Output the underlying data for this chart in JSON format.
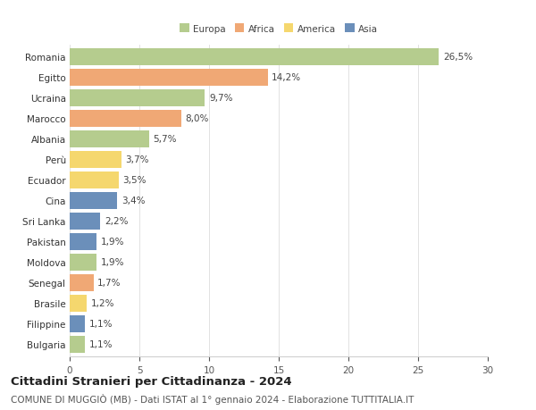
{
  "countries": [
    "Romania",
    "Egitto",
    "Ucraina",
    "Marocco",
    "Albania",
    "Perù",
    "Ecuador",
    "Cina",
    "Sri Lanka",
    "Pakistan",
    "Moldova",
    "Senegal",
    "Brasile",
    "Filippine",
    "Bulgaria"
  ],
  "values": [
    26.5,
    14.2,
    9.7,
    8.0,
    5.7,
    3.7,
    3.5,
    3.4,
    2.2,
    1.9,
    1.9,
    1.7,
    1.2,
    1.1,
    1.1
  ],
  "labels": [
    "26,5%",
    "14,2%",
    "9,7%",
    "8,0%",
    "5,7%",
    "3,7%",
    "3,5%",
    "3,4%",
    "2,2%",
    "1,9%",
    "1,9%",
    "1,7%",
    "1,2%",
    "1,1%",
    "1,1%"
  ],
  "continents": [
    "Europa",
    "Africa",
    "Europa",
    "Africa",
    "Europa",
    "America",
    "America",
    "Asia",
    "Asia",
    "Asia",
    "Europa",
    "Africa",
    "America",
    "Asia",
    "Europa"
  ],
  "colors": {
    "Europa": "#b5cc8e",
    "Africa": "#f0a875",
    "America": "#f5d76e",
    "Asia": "#6b8fba"
  },
  "xlim": [
    0,
    30
  ],
  "xticks": [
    0,
    5,
    10,
    15,
    20,
    25,
    30
  ],
  "title": "Cittadini Stranieri per Cittadinanza - 2024",
  "subtitle": "COMUNE DI MUGGIÒ (MB) - Dati ISTAT al 1° gennaio 2024 - Elaborazione TUTTITALIA.IT",
  "bg_color": "#ffffff",
  "bar_height": 0.82,
  "label_fontsize": 7.5,
  "tick_fontsize": 7.5,
  "title_fontsize": 9.5,
  "subtitle_fontsize": 7.5,
  "legend_order": [
    "Europa",
    "Africa",
    "America",
    "Asia"
  ]
}
